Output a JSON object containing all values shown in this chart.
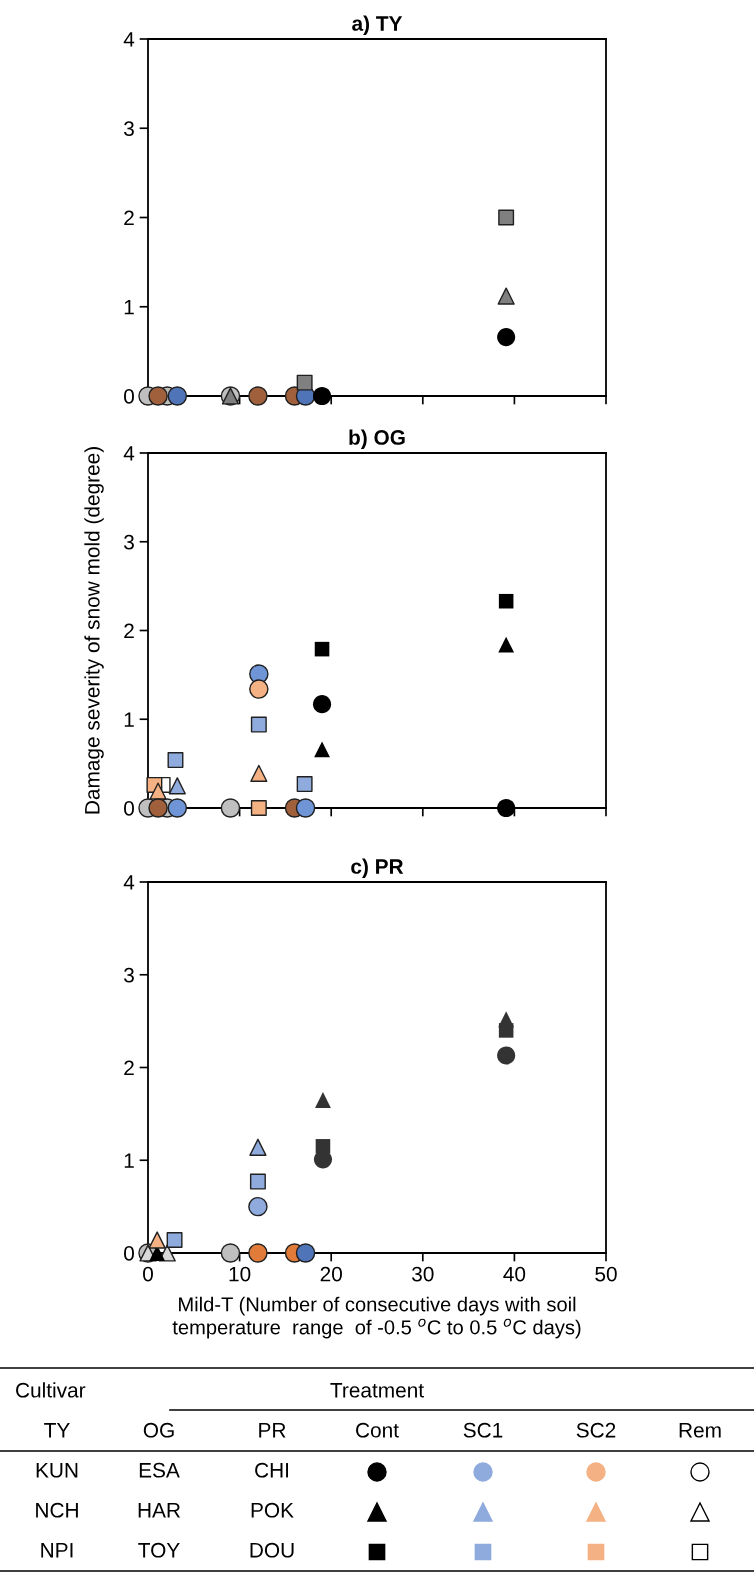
{
  "chart_data": [
    {
      "type": "scatter",
      "title": "a) TY",
      "xlim": [
        0,
        50
      ],
      "xticks": [
        0,
        10,
        20,
        30,
        40,
        50
      ],
      "ylim": [
        0,
        4
      ],
      "yticks": [
        0,
        1,
        2,
        3,
        4
      ],
      "tick_labels": "y",
      "grid": false,
      "legend": false,
      "series": [
        {
          "color": "#bfbfbf",
          "marker": "circle",
          "x": [
            0,
            2.1,
            9.0
          ],
          "values": [
            0,
            0,
            0
          ]
        },
        {
          "color": "#a0603c",
          "marker": "circle",
          "x": [
            1.1,
            12.0,
            16.0
          ],
          "values": [
            0,
            0,
            0
          ]
        },
        {
          "color": "#4f74b8",
          "marker": "circle",
          "x": [
            3.2,
            17.2
          ],
          "values": [
            0,
            0
          ]
        },
        {
          "color": "#808080",
          "marker": "triangle",
          "x": [
            9.0,
            39.1
          ],
          "values": [
            0,
            1.12
          ]
        },
        {
          "color": "#808080",
          "marker": "square",
          "x": [
            17.1,
            39.1
          ],
          "values": [
            0.15,
            2.0
          ]
        },
        {
          "color": "#000000",
          "marker": "circle",
          "x": [
            19.0,
            39.1
          ],
          "values": [
            0,
            0.66
          ]
        }
      ]
    },
    {
      "type": "scatter",
      "title": "b) OG",
      "ylabel": "Damage severity of snow mold (degree)",
      "xlim": [
        0,
        50
      ],
      "xticks": [
        0,
        10,
        20,
        30,
        40,
        50
      ],
      "ylim": [
        0,
        4
      ],
      "yticks": [
        0,
        1,
        2,
        3,
        4
      ],
      "tick_labels": "y",
      "grid": false,
      "legend": false,
      "series": [
        {
          "color": "#ffffff",
          "marker": "square",
          "x": [
            1.6
          ],
          "values": [
            0.26
          ]
        },
        {
          "color": "#f4b183",
          "marker": "square",
          "x": [
            0.7,
            12.1
          ],
          "values": [
            0.26,
            0
          ]
        },
        {
          "color": "#f4b183",
          "marker": "triangle",
          "x": [
            1.1,
            12.1
          ],
          "values": [
            0.19,
            0.39
          ]
        },
        {
          "color": "#8faadc",
          "marker": "triangle",
          "x": [
            3.2
          ],
          "values": [
            0.25
          ]
        },
        {
          "color": "#8faadc",
          "marker": "square",
          "x": [
            3.0,
            12.1,
            17.1
          ],
          "values": [
            0.54,
            0.94,
            0.27
          ]
        },
        {
          "color": "#bfbfbf",
          "marker": "circle",
          "x": [
            0,
            2.1,
            9.0
          ],
          "values": [
            0,
            0,
            0
          ]
        },
        {
          "color": "#a0603c",
          "marker": "circle",
          "x": [
            1.1,
            16.0
          ],
          "values": [
            0,
            0
          ]
        },
        {
          "color": "#6f95d6",
          "marker": "circle",
          "x": [
            3.2,
            12.1,
            17.2
          ],
          "values": [
            0,
            1.51,
            0
          ]
        },
        {
          "color": "#f4b183",
          "marker": "circle",
          "x": [
            12.1
          ],
          "values": [
            1.34
          ]
        },
        {
          "color": "#000000",
          "marker": "square",
          "x": [
            19.0,
            39.1
          ],
          "values": [
            1.79,
            2.33
          ]
        },
        {
          "color": "#000000",
          "marker": "triangle",
          "x": [
            19.0,
            39.1
          ],
          "values": [
            0.66,
            1.84
          ]
        },
        {
          "color": "#000000",
          "marker": "circle",
          "x": [
            19.0,
            39.1
          ],
          "values": [
            1.17,
            0
          ]
        }
      ]
    },
    {
      "type": "scatter",
      "title": "c) PR",
      "xlabel": "Mild-T (Number of consecutive days with soil\ntemperature  range  of -0.5 $^{o}$C to 0.5 $^{o}$C days)",
      "xlim": [
        0,
        50
      ],
      "xticks": [
        0,
        10,
        20,
        30,
        40,
        50
      ],
      "ylim": [
        0,
        4
      ],
      "yticks": [
        0,
        1,
        2,
        3,
        4
      ],
      "grid": false,
      "legend": false,
      "series": [
        {
          "color": "#bfbfbf",
          "marker": "circle",
          "x": [
            0,
            9.0
          ],
          "values": [
            0,
            0
          ]
        },
        {
          "color": "#d9d9d9",
          "marker": "triangle",
          "x": [
            0,
            2.1
          ],
          "values": [
            0,
            0
          ]
        },
        {
          "color": "#000000",
          "marker": "triangle",
          "x": [
            1.0
          ],
          "values": [
            0
          ]
        },
        {
          "color": "#f4b183",
          "marker": "triangle",
          "x": [
            1.0
          ],
          "values": [
            0.14
          ]
        },
        {
          "color": "#8faadc",
          "marker": "square",
          "x": [
            2.9,
            12.0
          ],
          "values": [
            0.14,
            0.77
          ]
        },
        {
          "color": "#e07b39",
          "marker": "circle",
          "x": [
            12.0,
            16.0
          ],
          "values": [
            0,
            0
          ]
        },
        {
          "color": "#4f74b8",
          "marker": "circle",
          "x": [
            17.2
          ],
          "values": [
            0
          ]
        },
        {
          "color": "#8faadc",
          "marker": "triangle",
          "x": [
            12.0
          ],
          "values": [
            1.14
          ]
        },
        {
          "color": "#8faadc",
          "marker": "circle",
          "x": [
            12.0
          ],
          "values": [
            0.5
          ]
        },
        {
          "color": "#333333",
          "marker": "triangle",
          "x": [
            19.1,
            39.1
          ],
          "values": [
            1.65,
            2.52
          ]
        },
        {
          "color": "#333333",
          "marker": "square",
          "x": [
            19.1,
            39.1
          ],
          "values": [
            1.15,
            2.4
          ]
        },
        {
          "color": "#333333",
          "marker": "circle",
          "x": [
            19.1,
            39.1
          ],
          "values": [
            1.01,
            2.13
          ]
        }
      ]
    },
    {
      "type": "other",
      "annotations": [
        "Cultivar",
        "Treatment",
        "TY",
        "OG",
        "PR",
        "Cont",
        "SC1",
        "SC2",
        "Rem",
        "KUN",
        "ESA",
        "CHI",
        "NCH",
        "HAR",
        "POK",
        "NPI",
        "TOY",
        "DOU"
      ]
    }
  ]
}
